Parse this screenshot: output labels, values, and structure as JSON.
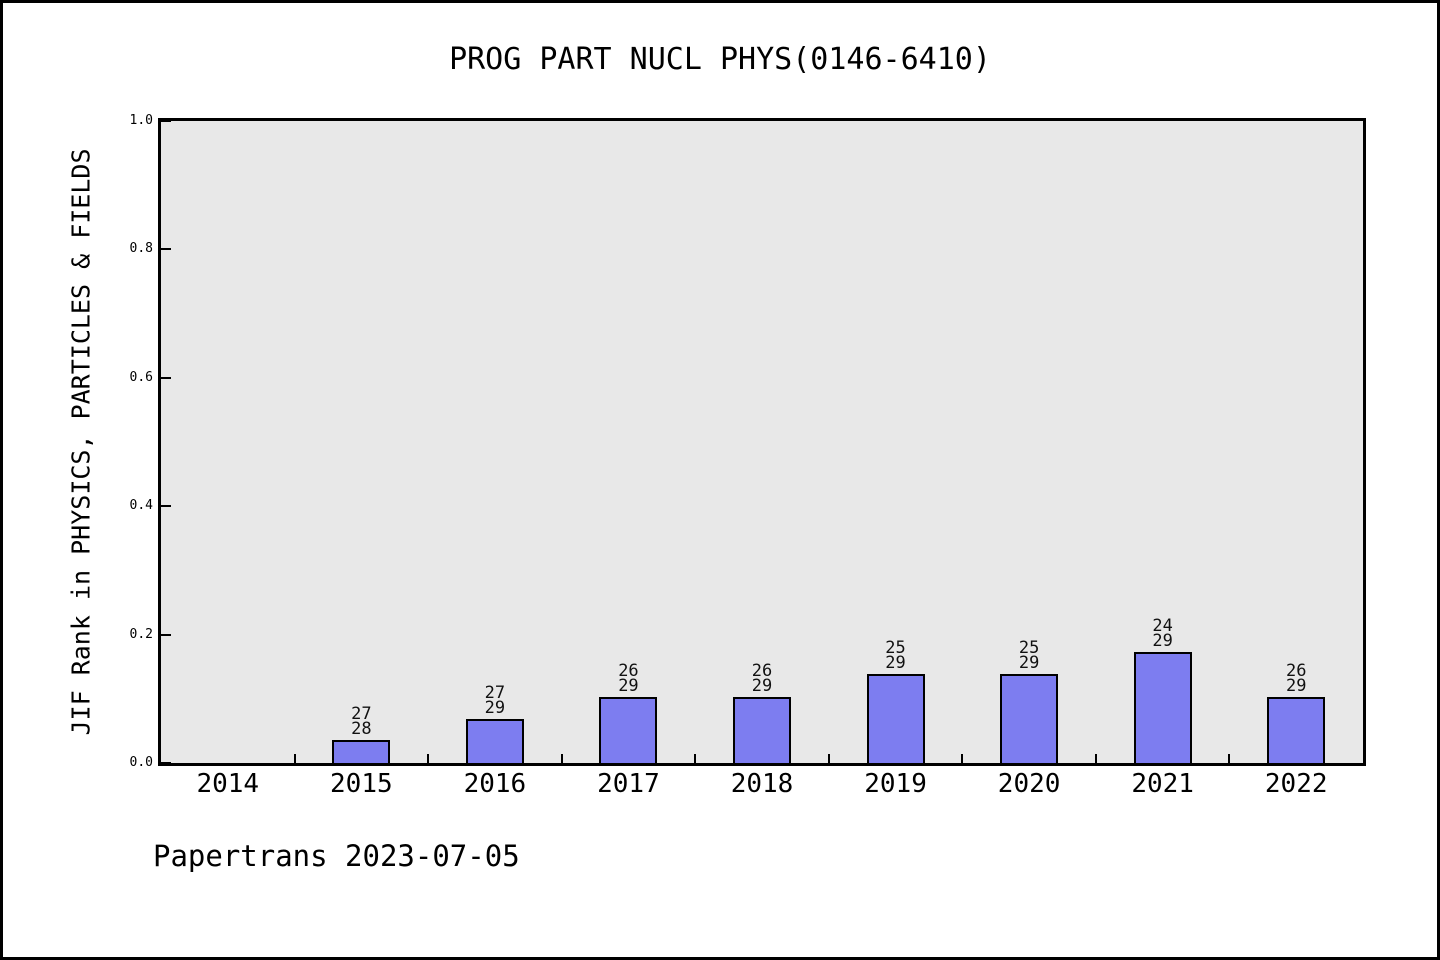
{
  "window": {
    "background": "#ffffff",
    "border_color": "#000000"
  },
  "footer": {
    "credit": "Papertrans 2023-07-05"
  },
  "chart_data": {
    "type": "bar",
    "title": "PROG PART NUCL PHYS(0146-6410)",
    "xlabel": "",
    "ylabel": "JIF Rank in PHYSICS, PARTICLES & FIELDS",
    "ylim": [
      0.0,
      1.0
    ],
    "yticks": [
      0.0,
      0.2,
      0.4,
      0.6,
      0.8,
      1.0
    ],
    "grid": false,
    "legend": false,
    "plot_background": "#e8e8e8",
    "bar_color": "#7d7df0",
    "bar_edge_color": "#000000",
    "categories": [
      "2014",
      "2015",
      "2016",
      "2017",
      "2018",
      "2019",
      "2020",
      "2021",
      "2022"
    ],
    "bars": [
      {
        "category": "2014",
        "rank": null,
        "total": null,
        "value": null
      },
      {
        "category": "2015",
        "rank": 27,
        "total": 28,
        "value": 0.0357
      },
      {
        "category": "2016",
        "rank": 27,
        "total": 29,
        "value": 0.069
      },
      {
        "category": "2017",
        "rank": 26,
        "total": 29,
        "value": 0.1034
      },
      {
        "category": "2018",
        "rank": 26,
        "total": 29,
        "value": 0.1034
      },
      {
        "category": "2019",
        "rank": 25,
        "total": 29,
        "value": 0.1379
      },
      {
        "category": "2020",
        "rank": 25,
        "total": 29,
        "value": 0.1379
      },
      {
        "category": "2021",
        "rank": 24,
        "total": 29,
        "value": 0.1724
      },
      {
        "category": "2022",
        "rank": 26,
        "total": 29,
        "value": 0.1034
      }
    ]
  }
}
